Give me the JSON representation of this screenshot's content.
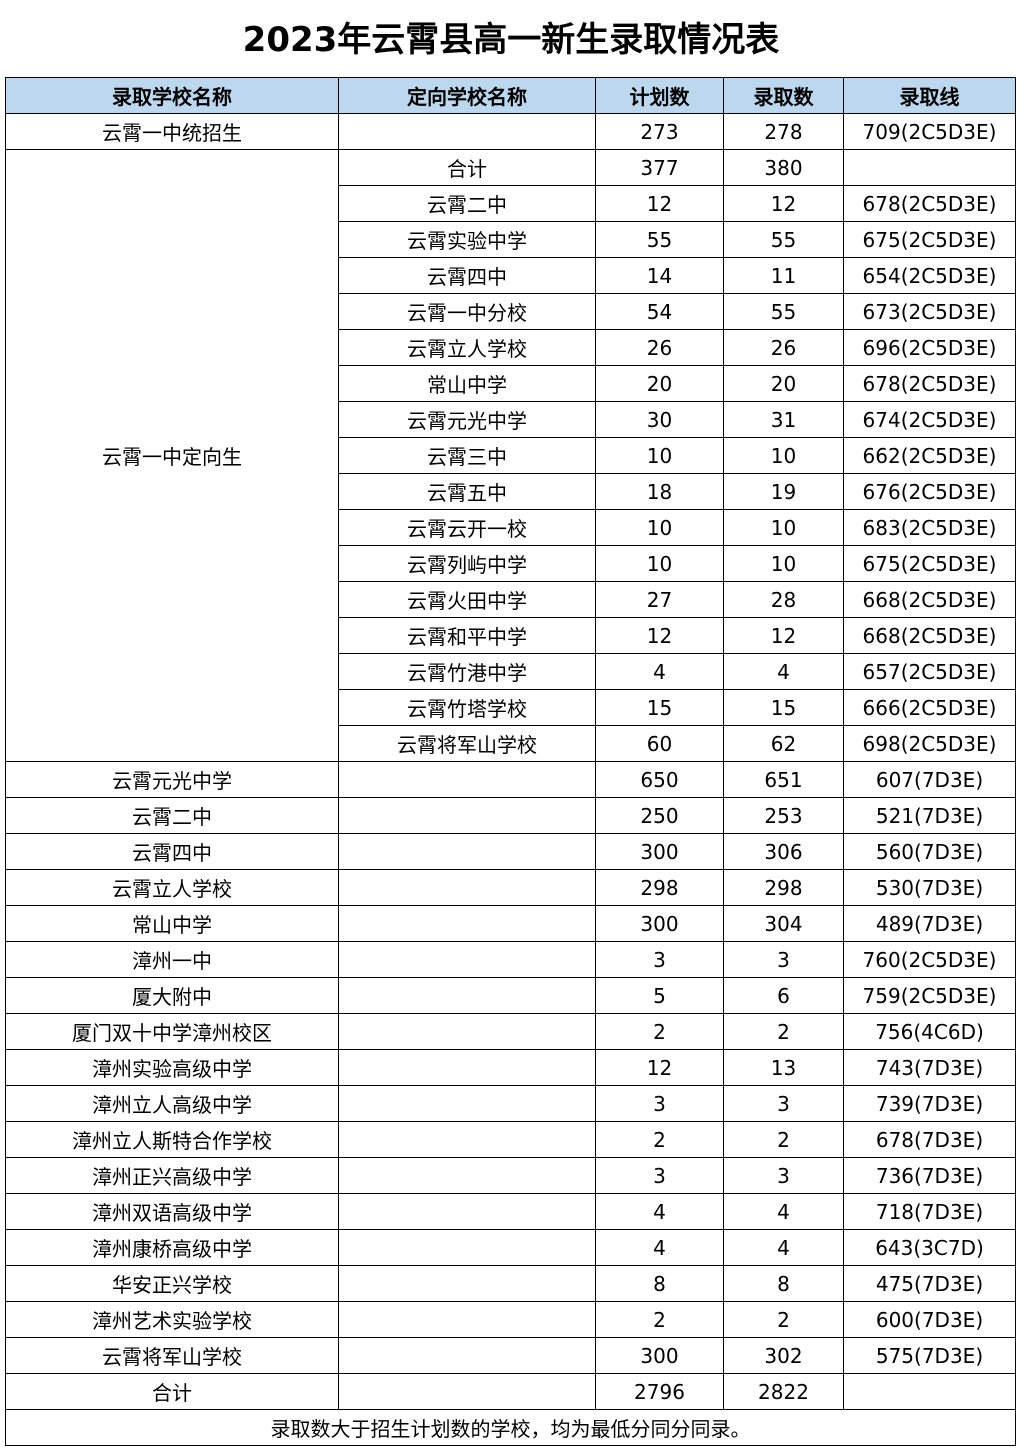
{
  "title": "2023年云霄县高一新生录取情况表",
  "colors": {
    "header_bg": "#BDD7EE"
  },
  "headers": [
    "录取学校名称",
    "定向学校名称",
    "计划数",
    "录取数",
    "录取线"
  ],
  "first_row": {
    "school": "云霄一中统招生",
    "directed": "",
    "plan": "273",
    "admitted": "278",
    "line": "709(2C5D3E)"
  },
  "directed_group": {
    "school": "云霄一中定向生",
    "rows": [
      {
        "directed": "合计",
        "plan": "377",
        "admitted": "380",
        "line": ""
      },
      {
        "directed": "云霄二中",
        "plan": "12",
        "admitted": "12",
        "line": "678(2C5D3E)"
      },
      {
        "directed": "云霄实验中学",
        "plan": "55",
        "admitted": "55",
        "line": "675(2C5D3E)"
      },
      {
        "directed": "云霄四中",
        "plan": "14",
        "admitted": "11",
        "line": "654(2C5D3E)"
      },
      {
        "directed": "云霄一中分校",
        "plan": "54",
        "admitted": "55",
        "line": "673(2C5D3E)"
      },
      {
        "directed": "云霄立人学校",
        "plan": "26",
        "admitted": "26",
        "line": "696(2C5D3E)"
      },
      {
        "directed": "常山中学",
        "plan": "20",
        "admitted": "20",
        "line": "678(2C5D3E)"
      },
      {
        "directed": "云霄元光中学",
        "plan": "30",
        "admitted": "31",
        "line": "674(2C5D3E)"
      },
      {
        "directed": "云霄三中",
        "plan": "10",
        "admitted": "10",
        "line": "662(2C5D3E)"
      },
      {
        "directed": "云霄五中",
        "plan": "18",
        "admitted": "19",
        "line": "676(2C5D3E)"
      },
      {
        "directed": "云霄云开一校",
        "plan": "10",
        "admitted": "10",
        "line": "683(2C5D3E)"
      },
      {
        "directed": "云霄列屿中学",
        "plan": "10",
        "admitted": "10",
        "line": "675(2C5D3E)"
      },
      {
        "directed": "云霄火田中学",
        "plan": "27",
        "admitted": "28",
        "line": "668(2C5D3E)"
      },
      {
        "directed": "云霄和平中学",
        "plan": "12",
        "admitted": "12",
        "line": "668(2C5D3E)"
      },
      {
        "directed": "云霄竹港中学",
        "plan": "4",
        "admitted": "4",
        "line": "657(2C5D3E)"
      },
      {
        "directed": "云霄竹塔学校",
        "plan": "15",
        "admitted": "15",
        "line": "666(2C5D3E)"
      },
      {
        "directed": "云霄将军山学校",
        "plan": "60",
        "admitted": "62",
        "line": "698(2C5D3E)"
      }
    ]
  },
  "rows": [
    {
      "school": "云霄元光中学",
      "directed": "",
      "plan": "650",
      "admitted": "651",
      "line": "607(7D3E)"
    },
    {
      "school": "云霄二中",
      "directed": "",
      "plan": "250",
      "admitted": "253",
      "line": "521(7D3E)"
    },
    {
      "school": "云霄四中",
      "directed": "",
      "plan": "300",
      "admitted": "306",
      "line": "560(7D3E)"
    },
    {
      "school": "云霄立人学校",
      "directed": "",
      "plan": "298",
      "admitted": "298",
      "line": "530(7D3E)"
    },
    {
      "school": "常山中学",
      "directed": "",
      "plan": "300",
      "admitted": "304",
      "line": "489(7D3E)"
    },
    {
      "school": "漳州一中",
      "directed": "",
      "plan": "3",
      "admitted": "3",
      "line": "760(2C5D3E)"
    },
    {
      "school": "厦大附中",
      "directed": "",
      "plan": "5",
      "admitted": "6",
      "line": "759(2C5D3E)"
    },
    {
      "school": "厦门双十中学漳州校区",
      "directed": "",
      "plan": "2",
      "admitted": "2",
      "line": "756(4C6D)"
    },
    {
      "school": "漳州实验高级中学",
      "directed": "",
      "plan": "12",
      "admitted": "13",
      "line": "743(7D3E)"
    },
    {
      "school": "漳州立人高级中学",
      "directed": "",
      "plan": "3",
      "admitted": "3",
      "line": "739(7D3E)"
    },
    {
      "school": "漳州立人斯特合作学校",
      "directed": "",
      "plan": "2",
      "admitted": "2",
      "line": "678(7D3E)"
    },
    {
      "school": "漳州正兴高级中学",
      "directed": "",
      "plan": "3",
      "admitted": "3",
      "line": "736(7D3E)"
    },
    {
      "school": "漳州双语高级中学",
      "directed": "",
      "plan": "4",
      "admitted": "4",
      "line": "718(7D3E)"
    },
    {
      "school": "漳州康桥高级中学",
      "directed": "",
      "plan": "4",
      "admitted": "4",
      "line": "643(3C7D)"
    },
    {
      "school": "华安正兴学校",
      "directed": "",
      "plan": "8",
      "admitted": "8",
      "line": "475(7D3E)"
    },
    {
      "school": "漳州艺术实验学校",
      "directed": "",
      "plan": "2",
      "admitted": "2",
      "line": "600(7D3E)"
    },
    {
      "school": "云霄将军山学校",
      "directed": "",
      "plan": "300",
      "admitted": "302",
      "line": "575(7D3E)"
    },
    {
      "school": "合计",
      "directed": "",
      "plan": "2796",
      "admitted": "2822",
      "line": ""
    }
  ],
  "footnote": "录取数大于招生计划数的学校，均为最低分同分同录。"
}
